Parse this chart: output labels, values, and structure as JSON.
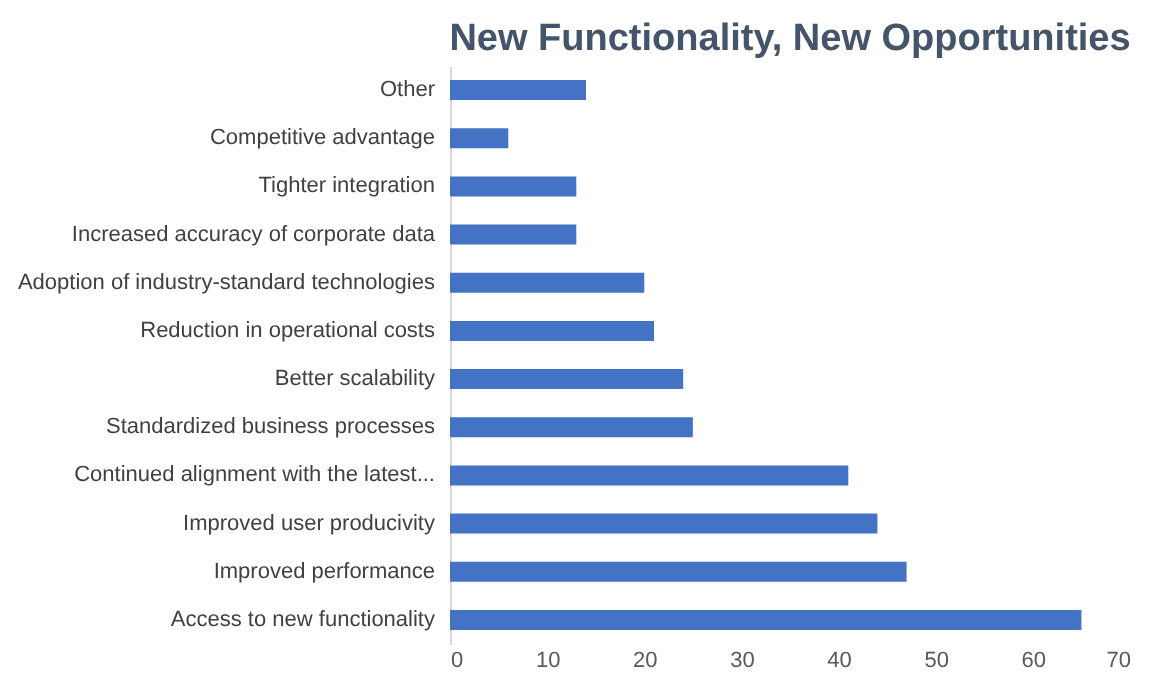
{
  "chart_data": {
    "type": "bar",
    "orientation": "horizontal",
    "title": "New Functionality, New Opportunities",
    "categories": [
      "Other",
      "Competitive advantage",
      "Tighter integration",
      "Increased accuracy of corporate data",
      "Adoption of industry-standard technologies",
      "Reduction in operational costs",
      "Better scalability",
      "Standardized business processes",
      "Continued alignment with the latest...",
      "Improved user producivity",
      "Improved performance",
      "Access to new functionality"
    ],
    "values": [
      14,
      6,
      13,
      13,
      20,
      21,
      24,
      25,
      41,
      44,
      47,
      65
    ],
    "color": "#4472c4",
    "xlim": [
      0,
      70
    ],
    "xticks": [
      0,
      10,
      20,
      30,
      40,
      50,
      60,
      70
    ],
    "grid": false
  }
}
